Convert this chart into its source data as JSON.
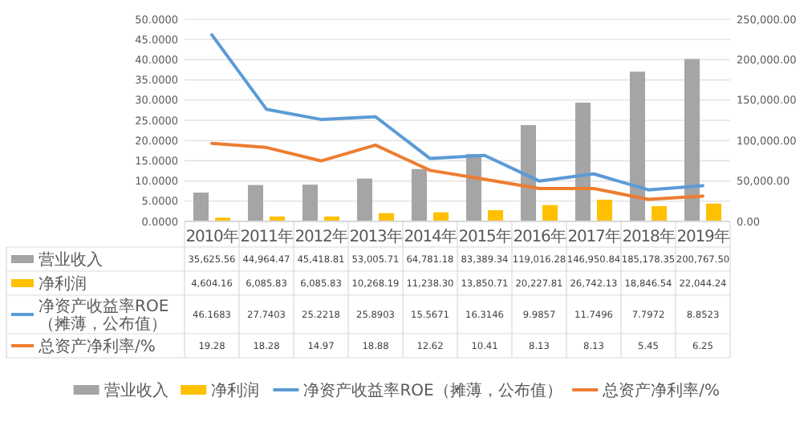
{
  "chart_data": {
    "type": "bar",
    "categories": [
      "2010年",
      "2011年",
      "2012年",
      "2013年",
      "2014年",
      "2015年",
      "2016年",
      "2017年",
      "2018年",
      "2019年"
    ],
    "series": [
      {
        "name": "营业收入",
        "axis": "y2",
        "color": "#a5a5a5",
        "values": [
          35625.56,
          44964.47,
          45418.81,
          53005.71,
          64781.18,
          83389.34,
          119016.28,
          146950.84,
          185178.35,
          200767.5
        ],
        "value_labels": [
          "35,625.56",
          "44,964.47",
          "45,418.81",
          "53,005.71",
          "64,781.18",
          "83,389.34",
          "119,016.28",
          "146,950.84",
          "185,178.35",
          "200,767.50"
        ]
      },
      {
        "name": "净利润",
        "axis": "y2",
        "color": "#ffc000",
        "values": [
          4604.16,
          6085.83,
          6085.83,
          10268.19,
          11238.3,
          13850.71,
          20227.81,
          26742.13,
          18846.54,
          22044.24
        ],
        "value_labels": [
          "4,604.16",
          "6,085.83",
          "6,085.83",
          "10,268.19",
          "11,238.30",
          "13,850.71",
          "20,227.81",
          "26,742.13",
          "18,846.54",
          "22,044.24"
        ]
      },
      {
        "name": "净资产收益率ROE（摊薄，公布值）",
        "type": "line",
        "color": "#5b9bd5",
        "values": [
          46.1683,
          27.7403,
          25.2218,
          25.8903,
          15.5671,
          16.3146,
          9.9857,
          11.7496,
          7.7972,
          8.8523
        ],
        "value_labels": [
          "46.1683",
          "27.7403",
          "25.2218",
          "25.8903",
          "15.5671",
          "16.3146",
          "9.9857",
          "11.7496",
          "7.7972",
          "8.8523"
        ]
      },
      {
        "name": "总资产净利率/%",
        "type": "line",
        "color": "#ed7d31",
        "values": [
          19.28,
          18.28,
          14.97,
          18.88,
          12.62,
          10.41,
          8.13,
          8.13,
          5.45,
          6.25
        ],
        "value_labels": [
          "19.28",
          "18.28",
          "14.97",
          "18.88",
          "12.62",
          "10.41",
          "8.13",
          "8.13",
          "5.45",
          "6.25"
        ]
      }
    ],
    "ylim": [
      0,
      50
    ],
    "yticks": [
      {
        "value": 0,
        "label": "0.0000"
      },
      {
        "value": 5,
        "label": "5.0000"
      },
      {
        "value": 10,
        "label": "10.0000"
      },
      {
        "value": 15,
        "label": "15.0000"
      },
      {
        "value": 20,
        "label": "20.0000"
      },
      {
        "value": 25,
        "label": "25.0000"
      },
      {
        "value": 30,
        "label": "30.0000"
      },
      {
        "value": 35,
        "label": "35.0000"
      },
      {
        "value": 40,
        "label": "40.0000"
      },
      {
        "value": 45,
        "label": "45.0000"
      },
      {
        "value": 50,
        "label": "50.0000"
      }
    ],
    "y2lim": [
      0,
      250000
    ],
    "y2ticks": [
      {
        "value": 0,
        "label": "0.00"
      },
      {
        "value": 50000,
        "label": "50,000.00"
      },
      {
        "value": 100000,
        "label": "100,000.00"
      },
      {
        "value": 150000,
        "label": "150,000.00"
      },
      {
        "value": 200000,
        "label": "200,000.00"
      },
      {
        "value": 250000,
        "label": "250,000.00"
      }
    ],
    "grid": "y",
    "legend": "bottom",
    "line_style": "solid",
    "marker": "none"
  }
}
